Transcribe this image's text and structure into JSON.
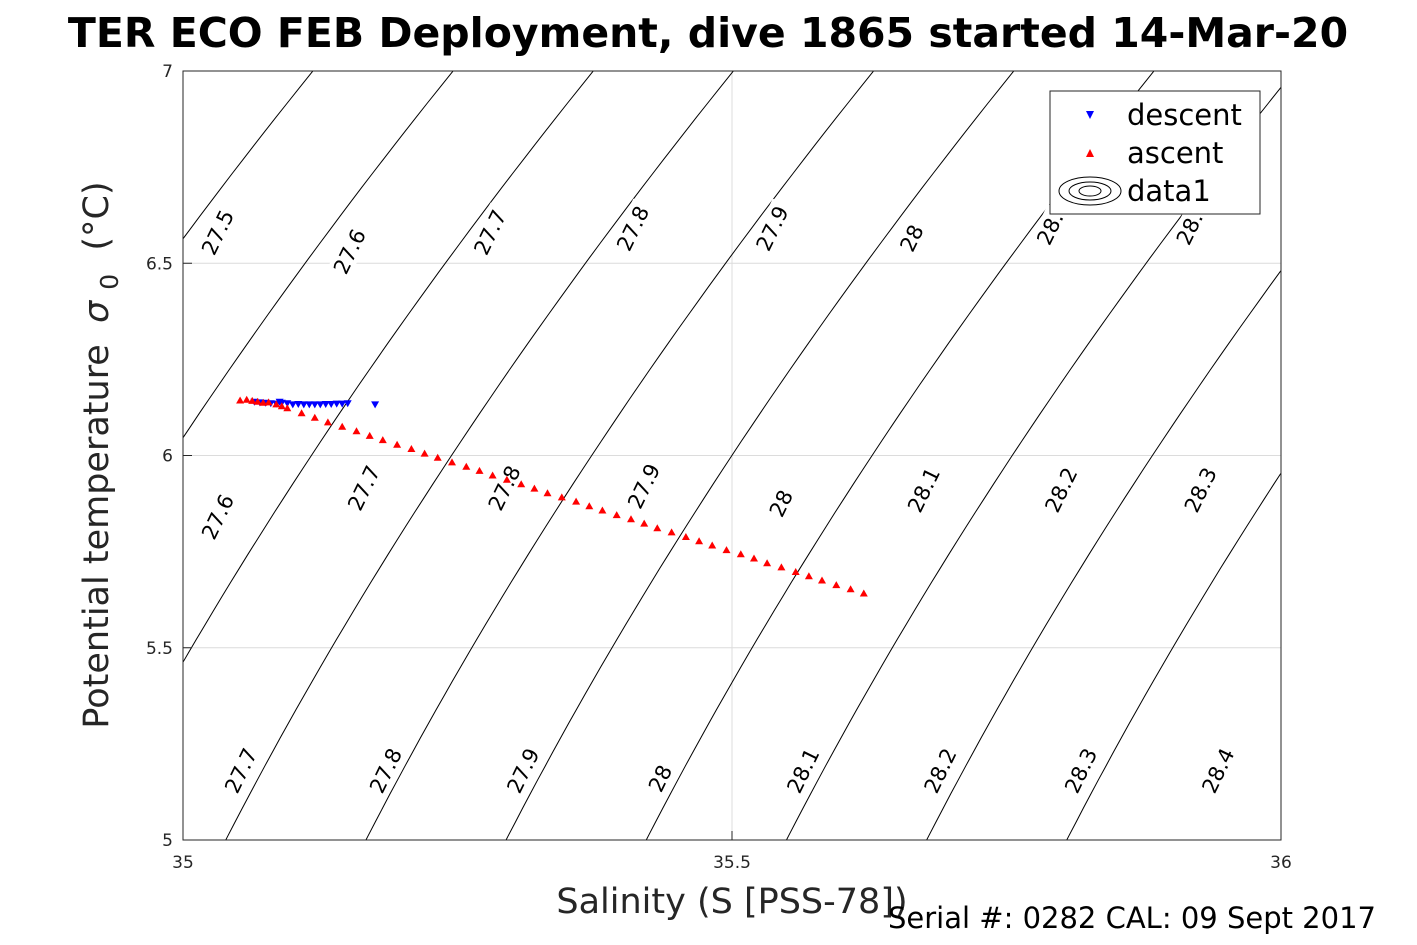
{
  "chart_data": {
    "type": "scatter",
    "title": "TER ECO FEB Deployment, dive 1865 started 14-Mar-20",
    "xlabel": "Salinity (S [PSS-78])",
    "ylabel": "Potential temperature",
    "ylabel_sigma": "σ",
    "ylabel_sub": "0",
    "ylabel_units": "(°C)",
    "xlim": [
      35,
      36
    ],
    "ylim": [
      5,
      7
    ],
    "xticks": [
      35,
      35.5,
      36
    ],
    "xtick_labels": [
      "35",
      "35.5",
      "36"
    ],
    "yticks": [
      5,
      5.5,
      6,
      6.5,
      7
    ],
    "ytick_labels": [
      "5",
      "5.5",
      "6",
      "6.5",
      "7"
    ],
    "grid": true,
    "legend": {
      "position": "top-right",
      "entries": [
        "descent",
        "ascent",
        "data1"
      ]
    },
    "series": [
      {
        "name": "descent",
        "marker": "triangle-down",
        "color": "#0000ff",
        "x": [
          35.065,
          35.07,
          35.075,
          35.08,
          35.085,
          35.088,
          35.09,
          35.095,
          35.1,
          35.105,
          35.11,
          35.115,
          35.12,
          35.125,
          35.13,
          35.135,
          35.14,
          35.145,
          35.15,
          35.175
        ],
        "y": [
          6.14,
          6.138,
          6.137,
          6.136,
          6.135,
          6.14,
          6.137,
          6.136,
          6.133,
          6.134,
          6.133,
          6.133,
          6.133,
          6.133,
          6.134,
          6.134,
          6.135,
          6.135,
          6.136,
          6.133
        ]
      },
      {
        "name": "ascent",
        "marker": "triangle-up",
        "color": "#ff0000",
        "x": [
          35.052,
          35.058,
          35.063,
          35.068,
          35.073,
          35.078,
          35.085,
          35.09,
          35.095,
          35.108,
          35.12,
          35.132,
          35.145,
          35.158,
          35.17,
          35.182,
          35.195,
          35.208,
          35.22,
          35.232,
          35.245,
          35.258,
          35.27,
          35.282,
          35.295,
          35.308,
          35.32,
          35.332,
          35.345,
          35.358,
          35.37,
          35.382,
          35.395,
          35.408,
          35.42,
          35.432,
          35.445,
          35.458,
          35.47,
          35.482,
          35.495,
          35.508,
          35.52,
          35.532,
          35.545,
          35.558,
          35.57,
          35.582,
          35.595,
          35.608,
          35.62
        ],
        "y": [
          6.143,
          6.145,
          6.142,
          6.14,
          6.137,
          6.138,
          6.133,
          6.128,
          6.123,
          6.11,
          6.098,
          6.086,
          6.075,
          6.063,
          6.051,
          6.04,
          6.028,
          6.017,
          6.005,
          5.994,
          5.982,
          5.971,
          5.96,
          5.948,
          5.937,
          5.925,
          5.914,
          5.902,
          5.891,
          5.88,
          5.868,
          5.857,
          5.845,
          5.834,
          5.823,
          5.811,
          5.8,
          5.788,
          5.777,
          5.766,
          5.754,
          5.743,
          5.732,
          5.72,
          5.709,
          5.697,
          5.686,
          5.675,
          5.663,
          5.652,
          5.641
        ]
      }
    ],
    "contours": {
      "name": "data1",
      "color": "#000000",
      "levels": [
        27.5,
        27.6,
        27.7,
        27.8,
        27.9,
        28,
        28.1,
        28.2,
        28.3,
        28.4
      ],
      "labels": [
        {
          "text": "27.5",
          "x": 35.032,
          "y": 6.58
        },
        {
          "text": "27.6",
          "x": 35.152,
          "y": 6.53
        },
        {
          "text": "27.7",
          "x": 35.28,
          "y": 6.58
        },
        {
          "text": "27.8",
          "x": 35.41,
          "y": 6.59
        },
        {
          "text": "27.9",
          "x": 35.537,
          "y": 6.59
        },
        {
          "text": "28",
          "x": 35.664,
          "y": 6.565
        },
        {
          "text": "28.",
          "x": 35.79,
          "y": 6.59
        },
        {
          "text": "28.",
          "x": 35.917,
          "y": 6.59
        },
        {
          "text": "27.6",
          "x": 35.032,
          "y": 5.84
        },
        {
          "text": "27.7",
          "x": 35.165,
          "y": 5.915
        },
        {
          "text": "27.8",
          "x": 35.293,
          "y": 5.915
        },
        {
          "text": "27.9",
          "x": 35.42,
          "y": 5.92
        },
        {
          "text": "28",
          "x": 35.545,
          "y": 5.875
        },
        {
          "text": "28.1",
          "x": 35.675,
          "y": 5.91
        },
        {
          "text": "28.2",
          "x": 35.8,
          "y": 5.91
        },
        {
          "text": "28.3",
          "x": 35.927,
          "y": 5.91
        },
        {
          "text": "27.7",
          "x": 35.053,
          "y": 5.18
        },
        {
          "text": "27.8",
          "x": 35.185,
          "y": 5.18
        },
        {
          "text": "27.9",
          "x": 35.31,
          "y": 5.18
        },
        {
          "text": "28",
          "x": 35.435,
          "y": 5.16
        },
        {
          "text": "28.1",
          "x": 35.565,
          "y": 5.18
        },
        {
          "text": "28.2",
          "x": 35.69,
          "y": 5.18
        },
        {
          "text": "28.3",
          "x": 35.818,
          "y": 5.18
        },
        {
          "text": "28.4",
          "x": 35.943,
          "y": 5.18
        }
      ]
    }
  },
  "footer": {
    "serial": "Serial #: 0282  CAL: 09 Sept 2017"
  }
}
